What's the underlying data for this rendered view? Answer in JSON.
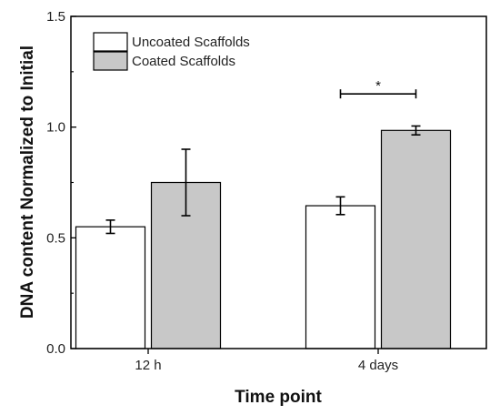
{
  "chart_data": {
    "type": "bar",
    "xlabel": "Time point",
    "ylabel": "DNA content Normalized to Initial",
    "ylim": [
      0.0,
      1.5
    ],
    "yticks": [
      "0.0",
      "0.5",
      "1.0",
      "1.5"
    ],
    "ytick_values": [
      0.0,
      0.5,
      1.0,
      1.5
    ],
    "categories": [
      "12 h",
      "4 days"
    ],
    "series": [
      {
        "name": "Uncoated Scaffolds",
        "values": [
          0.55,
          0.645
        ],
        "errors": [
          0.03,
          0.04
        ],
        "color": "#ffffff"
      },
      {
        "name": "Coated Scaffolds",
        "values": [
          0.75,
          0.985
        ],
        "errors": [
          0.15,
          0.02
        ],
        "color": "#c8c8c8"
      }
    ],
    "legend_position": "top-left",
    "annotations": [
      {
        "text": "*",
        "category": "4 days",
        "level": 1.15
      }
    ],
    "grid": false
  }
}
